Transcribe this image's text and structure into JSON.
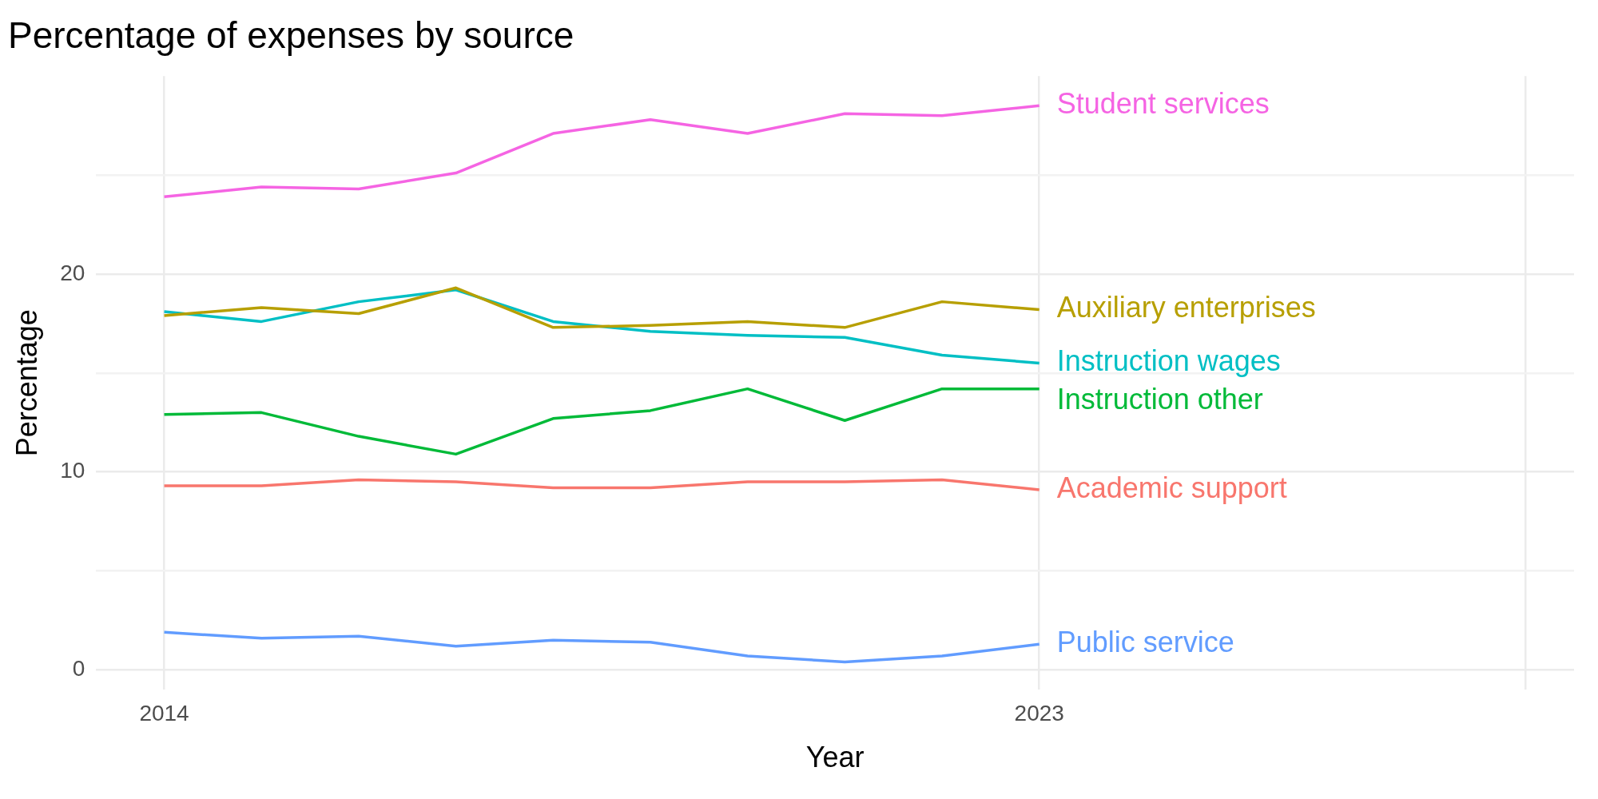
{
  "chart_data": {
    "type": "line",
    "title": "Percentage of expenses by source",
    "xlabel": "Year",
    "ylabel": "Percentage",
    "x": [
      2014,
      2015,
      2016,
      2017,
      2018,
      2019,
      2020,
      2021,
      2022,
      2023
    ],
    "series": [
      {
        "name": "Student services",
        "color": "#f564e3",
        "values": [
          23.9,
          24.4,
          24.3,
          25.1,
          27.1,
          27.8,
          27.1,
          28.1,
          28.0,
          28.5
        ]
      },
      {
        "name": "Auxiliary enterprises",
        "color": "#b79f00",
        "values": [
          17.9,
          18.3,
          18.0,
          19.3,
          17.3,
          17.4,
          17.6,
          17.3,
          18.6,
          18.2
        ]
      },
      {
        "name": "Instruction wages",
        "color": "#00bfc4",
        "values": [
          18.1,
          17.6,
          18.6,
          19.2,
          17.6,
          17.1,
          16.9,
          16.8,
          15.9,
          15.5
        ]
      },
      {
        "name": "Instruction other",
        "color": "#00ba38",
        "values": [
          12.9,
          13.0,
          11.8,
          10.9,
          12.7,
          13.1,
          14.2,
          12.6,
          14.2,
          14.2
        ]
      },
      {
        "name": "Academic support",
        "color": "#f8766d",
        "values": [
          9.3,
          9.3,
          9.6,
          9.5,
          9.2,
          9.2,
          9.5,
          9.5,
          9.6,
          9.1
        ]
      },
      {
        "name": "Public service",
        "color": "#619cff",
        "values": [
          1.9,
          1.6,
          1.7,
          1.2,
          1.5,
          1.4,
          0.7,
          0.4,
          0.7,
          1.3
        ]
      }
    ],
    "xlim": [
      2013.3,
      2028.5
    ],
    "xticks": [
      2014,
      2023,
      {
        "value": 2028,
        "label": null
      }
    ],
    "ylim": [
      -1,
      30
    ],
    "yticks": [
      0,
      {
        "value": 5,
        "label": null
      },
      10,
      {
        "value": 15,
        "label": null
      },
      20,
      {
        "value": 25,
        "label": null
      }
    ],
    "grid": true,
    "legend": false,
    "marker": "none",
    "line_style": "solid"
  }
}
